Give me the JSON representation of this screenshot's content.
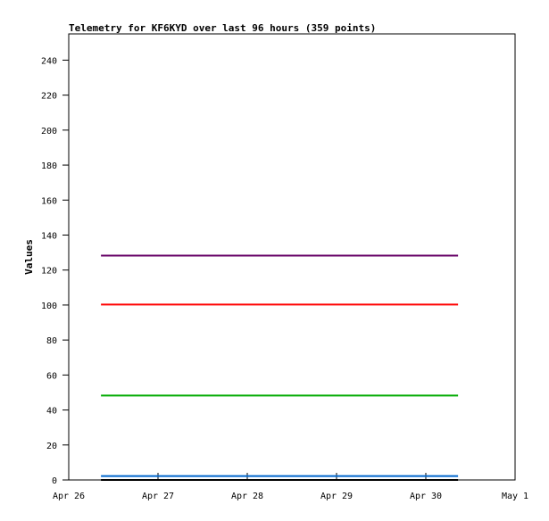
{
  "chart_data": {
    "type": "line",
    "title": "Telemetry for KF6KYD over last 96 hours (359 points)",
    "xlabel": "",
    "ylabel": "Values",
    "xlim": [
      "Apr 26 00:00",
      "May 1 00:00"
    ],
    "ylim": [
      0,
      255
    ],
    "x_ticks": [
      "Apr 26",
      "Apr 27",
      "Apr 28",
      "Apr 29",
      "Apr 30",
      "May 1"
    ],
    "y_ticks": [
      0,
      20,
      40,
      60,
      80,
      100,
      120,
      140,
      160,
      180,
      200,
      220,
      240
    ],
    "grid": false,
    "series": [
      {
        "color": "#660066",
        "x": [
          "Apr 26 08:40",
          "Apr 30 08:40"
        ],
        "y": [
          128,
          128
        ]
      },
      {
        "color": "#ff0000",
        "x": [
          "Apr 26 08:40",
          "Apr 30 08:40"
        ],
        "y": [
          100,
          100
        ]
      },
      {
        "color": "#00aa00",
        "x": [
          "Apr 26 08:40",
          "Apr 30 08:40"
        ],
        "y": [
          48,
          48
        ]
      },
      {
        "color": "#0066cc",
        "x": [
          "Apr 26 08:40",
          "Apr 30 08:40"
        ],
        "y": [
          2,
          2
        ]
      },
      {
        "color": "#000000",
        "x": [
          "Apr 26 08:40",
          "Apr 30 08:40"
        ],
        "y": [
          0,
          0
        ]
      }
    ]
  }
}
